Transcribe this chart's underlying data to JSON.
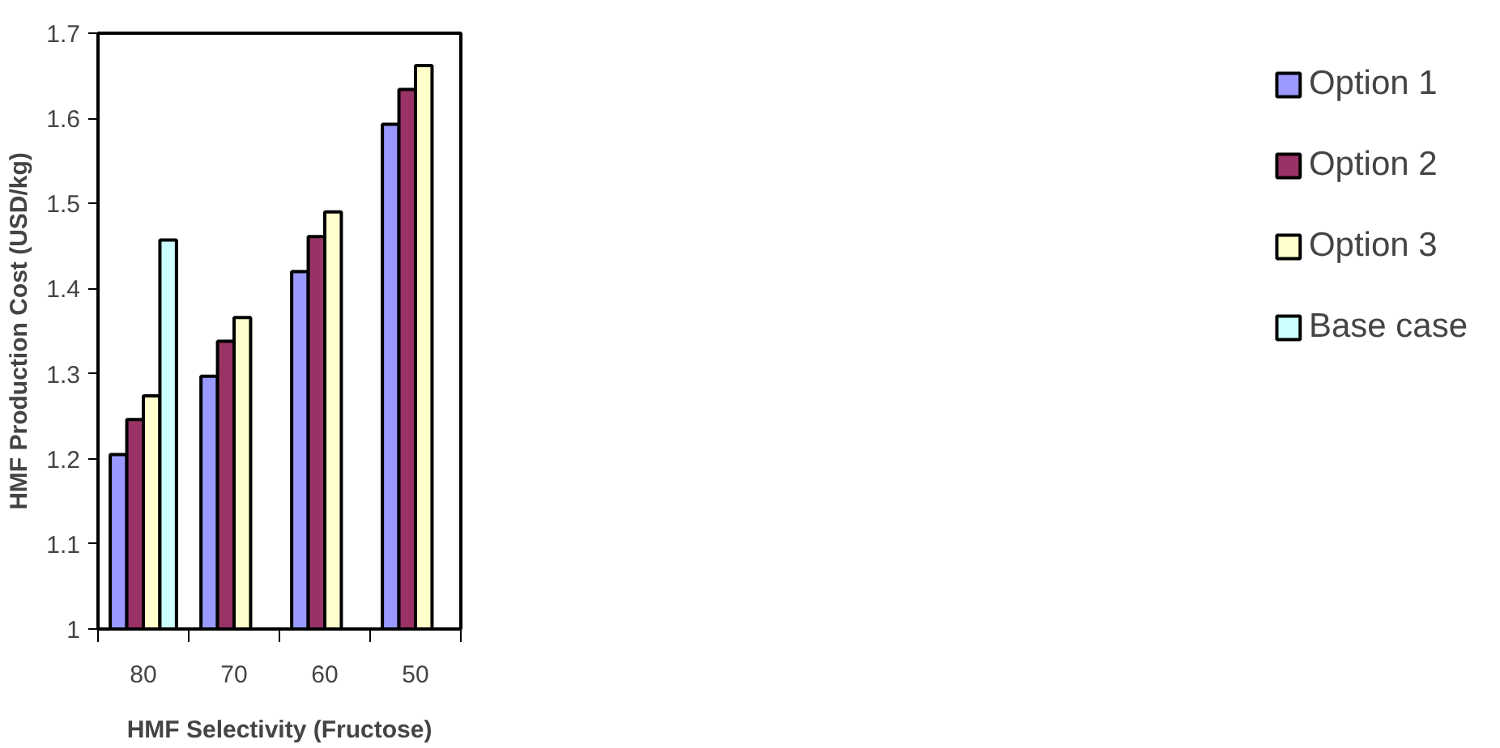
{
  "chart_data": {
    "type": "bar",
    "xlabel": "HMF Selectivity (Fructose)",
    "ylabel": "HMF Production Cost (USD/kg)",
    "categories": [
      "80",
      "70",
      "60",
      "50"
    ],
    "series": [
      {
        "name": "Option 1",
        "color": "#9999ff",
        "values": [
          1.205,
          1.297,
          1.42,
          1.593
        ]
      },
      {
        "name": "Option 2",
        "color": "#993366",
        "values": [
          1.246,
          1.338,
          1.461,
          1.634
        ]
      },
      {
        "name": "Option 3",
        "color": "#ffffcc",
        "values": [
          1.274,
          1.366,
          1.49,
          1.662
        ]
      },
      {
        "name": "Base case",
        "color": "#ccffff",
        "values": [
          1.457,
          null,
          null,
          null
        ]
      }
    ],
    "ylim": [
      1,
      1.7
    ],
    "yticks": [
      1,
      1.1,
      1.2,
      1.3,
      1.4,
      1.5,
      1.6,
      1.7
    ],
    "grid": false,
    "legend": "right"
  }
}
